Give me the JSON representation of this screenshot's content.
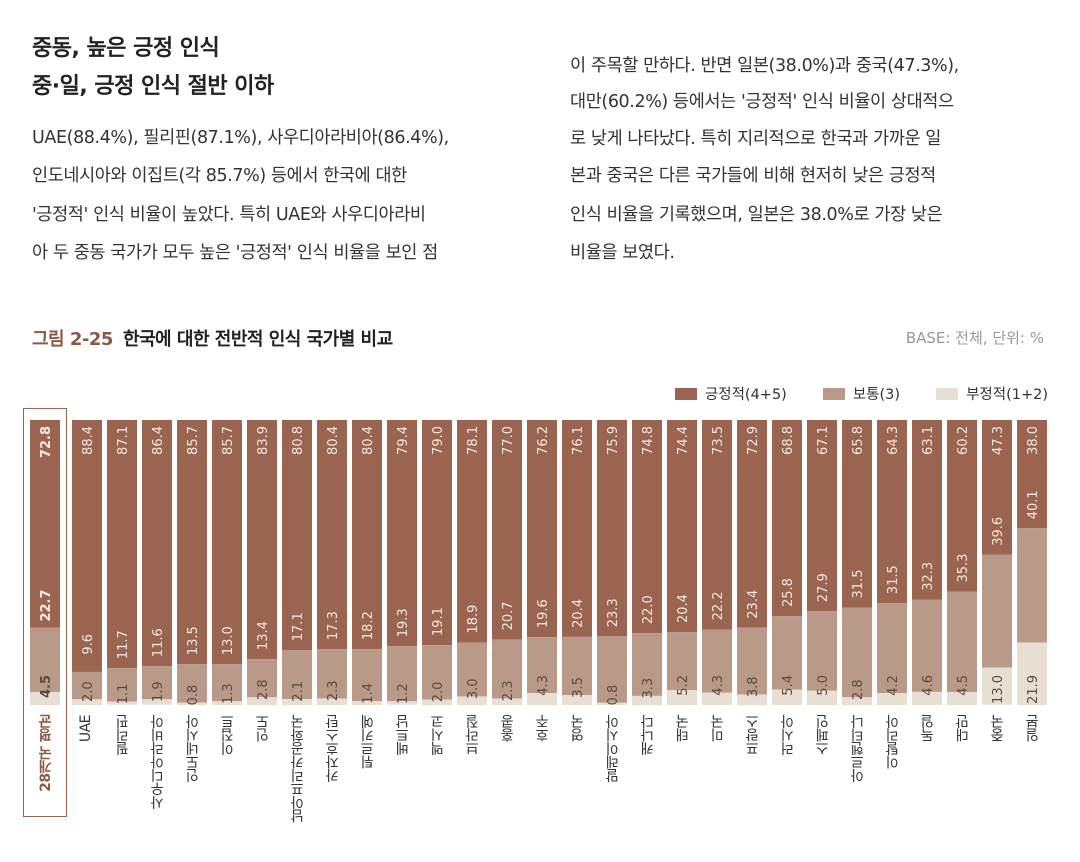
{
  "left_column": {
    "heading_lines": [
      "중동, 높은 긍정 인식",
      "중·일, 긍정 인식 절반 이하"
    ],
    "body_lines": [
      "UAE(88.4%), 필리핀(87.1%), 사우디아라비아(86.4%),",
      "인도네시아와 이집트(각 85.7%) 등에서 한국에 대한",
      "'긍정적' 인식 비율이 높았다. 특히 UAE와 사우디아라비",
      "아 두 중동 국가가 모두 높은 '긍정적' 인식 비율을 보인 점"
    ]
  },
  "right_column": {
    "body_lines": [
      "이 주목할 만하다. 반면 일본(38.0%)과 중국(47.3%),",
      "대만(60.2%) 등에서는 '긍정적' 인식 비율이 상대적으",
      "로 낮게 나타났다. 특히 지리적으로 한국과 가까운 일",
      "본과 중국은 다른 국가들에 비해 현저히 낮은 긍정적",
      "인식 비율을 기록했으며, 일본은 38.0%로 가장 낮은",
      "비율을 보였다."
    ]
  },
  "chart_data": {
    "type": "bar",
    "stacked": true,
    "orientation": "vertical",
    "figure_number": "그림 2-25",
    "title": "한국에 대한 전반적 인식 국가별 비교",
    "base_note": "BASE: 전체, 단위: %",
    "legend_position": "top-right",
    "ylim": [
      0,
      100
    ],
    "grid": false,
    "highlighted_category": "28개국 평균",
    "categories": [
      "28개국 평균",
      "UAE",
      "필리핀",
      "사우디아라비아",
      "인도네시아",
      "이집트",
      "인도",
      "남아프리카공화국",
      "카자흐스탄",
      "튀르키예",
      "베트남",
      "멕시코",
      "브라질",
      "홍콩",
      "호주",
      "영국",
      "말레이시아",
      "캐나다",
      "태국",
      "미국",
      "프랑스",
      "러시아",
      "스페인",
      "아르헨티나",
      "이탈리아",
      "독일",
      "대만",
      "중국",
      "일본"
    ],
    "series": [
      {
        "name": "긍정적(4+5)",
        "color": "#9a6450",
        "values": [
          72.8,
          88.4,
          87.1,
          86.4,
          85.7,
          85.7,
          83.9,
          80.8,
          80.4,
          80.4,
          79.4,
          79.0,
          78.1,
          77.0,
          76.2,
          76.1,
          75.9,
          74.8,
          74.4,
          73.5,
          72.9,
          68.8,
          67.1,
          65.8,
          64.3,
          63.1,
          60.2,
          47.3,
          38.0
        ]
      },
      {
        "name": "보통(3)",
        "color": "#b99a88",
        "values": [
          22.7,
          9.6,
          11.7,
          11.6,
          13.5,
          13.0,
          13.4,
          17.1,
          17.3,
          18.2,
          19.3,
          19.1,
          18.9,
          20.7,
          19.6,
          20.4,
          23.3,
          22.0,
          20.4,
          22.2,
          23.4,
          25.8,
          27.9,
          31.5,
          31.5,
          32.3,
          35.3,
          39.6,
          40.1
        ]
      },
      {
        "name": "부정적(1+2)",
        "color": "#e8dfd3",
        "values": [
          4.5,
          2.0,
          1.1,
          1.9,
          0.8,
          1.3,
          2.8,
          2.1,
          2.3,
          1.4,
          1.2,
          2.0,
          3.0,
          2.3,
          4.3,
          3.5,
          0.8,
          3.3,
          5.2,
          4.3,
          3.8,
          5.4,
          5.0,
          2.8,
          4.2,
          4.6,
          4.5,
          13.0,
          21.9
        ]
      }
    ]
  }
}
